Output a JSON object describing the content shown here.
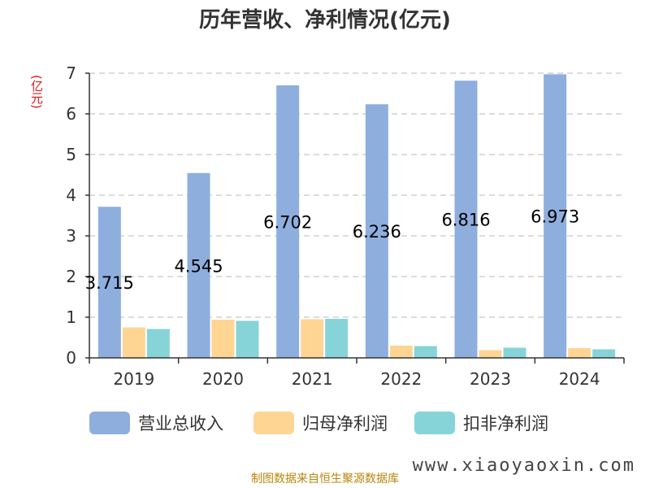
{
  "source_note": "制图数据来自恒生聚源数据库",
  "watermark": "www.xiaoyaoxin.com",
  "chart_data": {
    "type": "bar",
    "title": "历年营收、净利情况(亿元)",
    "unit_label": "(亿元)",
    "categories": [
      "2019",
      "2020",
      "2021",
      "2022",
      "2023",
      "2024"
    ],
    "ylim": [
      0,
      7
    ],
    "yticks": [
      "0",
      "1",
      "2",
      "3",
      "4",
      "5",
      "6",
      "7"
    ],
    "grid": true,
    "legend_position": "bottom",
    "series": [
      {
        "name": "营业总收入",
        "color": "#8eaedd",
        "values": [
          3.715,
          4.545,
          6.702,
          6.236,
          6.816,
          6.973
        ],
        "labels": [
          "3.715",
          "4.545",
          "6.702",
          "6.236",
          "6.816",
          "6.973"
        ]
      },
      {
        "name": "归母净利润",
        "color": "#ffd594",
        "values": [
          0.75,
          0.94,
          0.95,
          0.3,
          0.19,
          0.24
        ]
      },
      {
        "name": "扣非净利润",
        "color": "#86d4d8",
        "values": [
          0.71,
          0.91,
          0.96,
          0.29,
          0.25,
          0.21
        ]
      }
    ]
  }
}
